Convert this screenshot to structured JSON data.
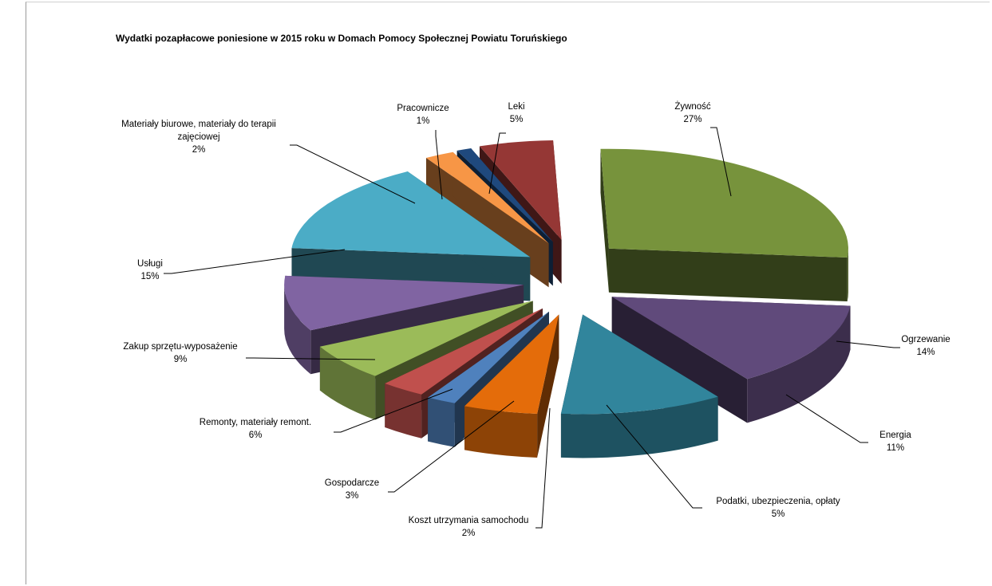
{
  "chart_data": {
    "type": "pie",
    "title": "Wydatki pozapłacowe poniesione w 2015 roku w Domach Pomocy Społecznej Powiatu Toruńskiego",
    "slices": [
      {
        "label_lines": [
          "Żywność"
        ],
        "pct": "27%",
        "value": 27,
        "color": "#77933C"
      },
      {
        "label_lines": [
          "Ogrzewanie"
        ],
        "pct": "14%",
        "value": 14,
        "color": "#604A7B"
      },
      {
        "label_lines": [
          "Energia"
        ],
        "pct": "11%",
        "value": 11,
        "color": "#31859C"
      },
      {
        "label_lines": [
          "Podatki, ubezpieczenia, opłaty"
        ],
        "pct": "5%",
        "value": 5,
        "color": "#E46C0A"
      },
      {
        "label_lines": [
          "Koszt utrzymania samochodu"
        ],
        "pct": "2%",
        "value": 2,
        "color": "#4F81BD"
      },
      {
        "label_lines": [
          "Gospodarcze"
        ],
        "pct": "3%",
        "value": 3,
        "color": "#C0504D"
      },
      {
        "label_lines": [
          "Remonty, materiały remont."
        ],
        "pct": "6%",
        "value": 6,
        "color": "#9BBB59"
      },
      {
        "label_lines": [
          "Zakup sprzętu-wyposażenie"
        ],
        "pct": "9%",
        "value": 9,
        "color": "#8064A2"
      },
      {
        "label_lines": [
          "Usługi"
        ],
        "pct": "15%",
        "value": 15,
        "color": "#4BACC6"
      },
      {
        "label_lines": [
          "Materiały biurowe, materiały do terapii",
          "zajęciowej"
        ],
        "pct": "2%",
        "value": 2,
        "color": "#F79646"
      },
      {
        "label_lines": [
          "Pracownicze"
        ],
        "pct": "1%",
        "value": 1,
        "color": "#1F497D"
      },
      {
        "label_lines": [
          "Leki"
        ],
        "pct": "5%",
        "value": 5,
        "color": "#953735"
      }
    ]
  }
}
